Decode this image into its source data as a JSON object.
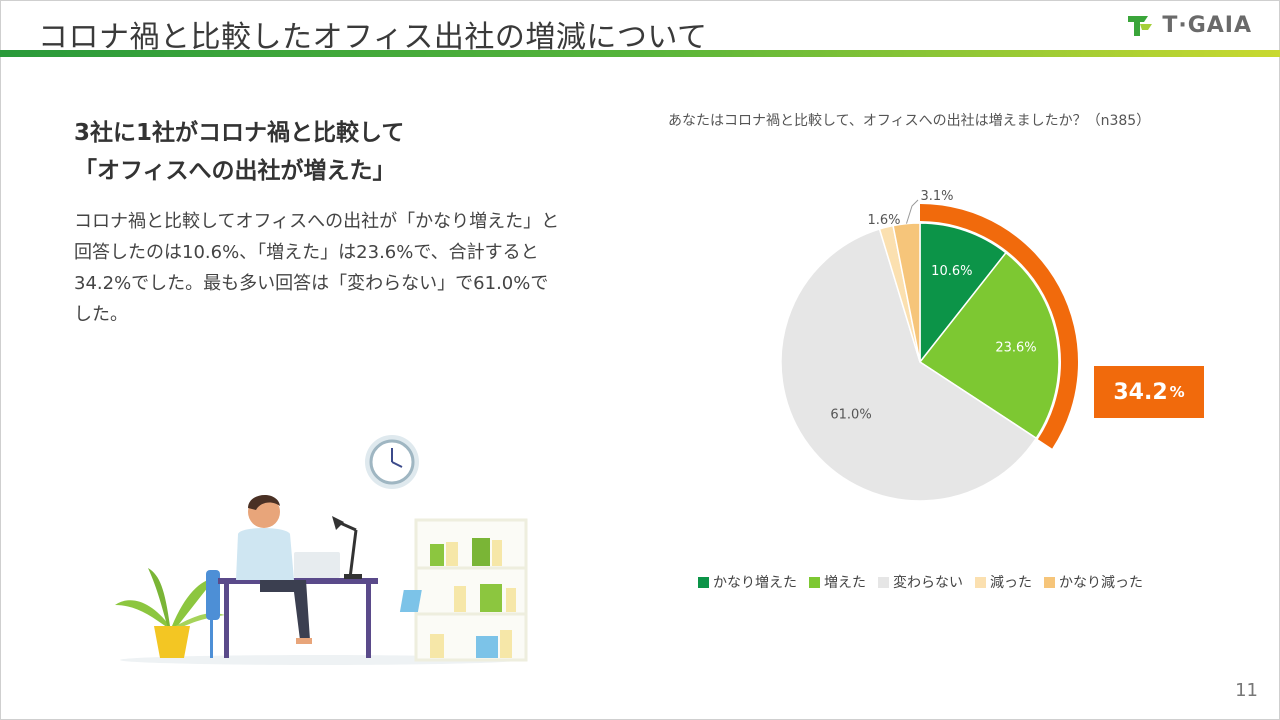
{
  "slide": {
    "title": "コロナ禍と比較したオフィス出社の増減について",
    "page_number": "11",
    "logo_text": "T·GAIA"
  },
  "headline": {
    "line1": "3社に1社がコロナ禍と比較して",
    "line2": "「オフィスへの出社が増えた」"
  },
  "body": {
    "line1": "コロナ禍と比較してオフィスへの出社が「かなり増えた」と",
    "line2": "回答したのは10.6%、「増えた」は23.6%で、合計すると",
    "line3": "34.2%でした。最も多い回答は「変わらない」で61.0%で",
    "line4": "した。"
  },
  "chart_data": {
    "type": "pie",
    "title": "あなたはコロナ禍と比較して、オフィスへの出社は増えましたか？（n385）",
    "categories": [
      "かなり増えた",
      "増えた",
      "変わらない",
      "減った",
      "かなり減った"
    ],
    "values": [
      10.6,
      23.6,
      61.0,
      1.6,
      3.1
    ],
    "labels": [
      "10.6%",
      "23.6%",
      "61.0%",
      "1.6%",
      "3.1%"
    ],
    "colors": [
      "#0c9448",
      "#7dc832",
      "#e6e6e6",
      "#fbe0b0",
      "#f6c57a"
    ],
    "legend_position": "bottom",
    "highlight": {
      "value": "34.2",
      "unit": "%",
      "covers": [
        "かなり増えた",
        "増えた"
      ],
      "color": "#f16a0c"
    }
  }
}
